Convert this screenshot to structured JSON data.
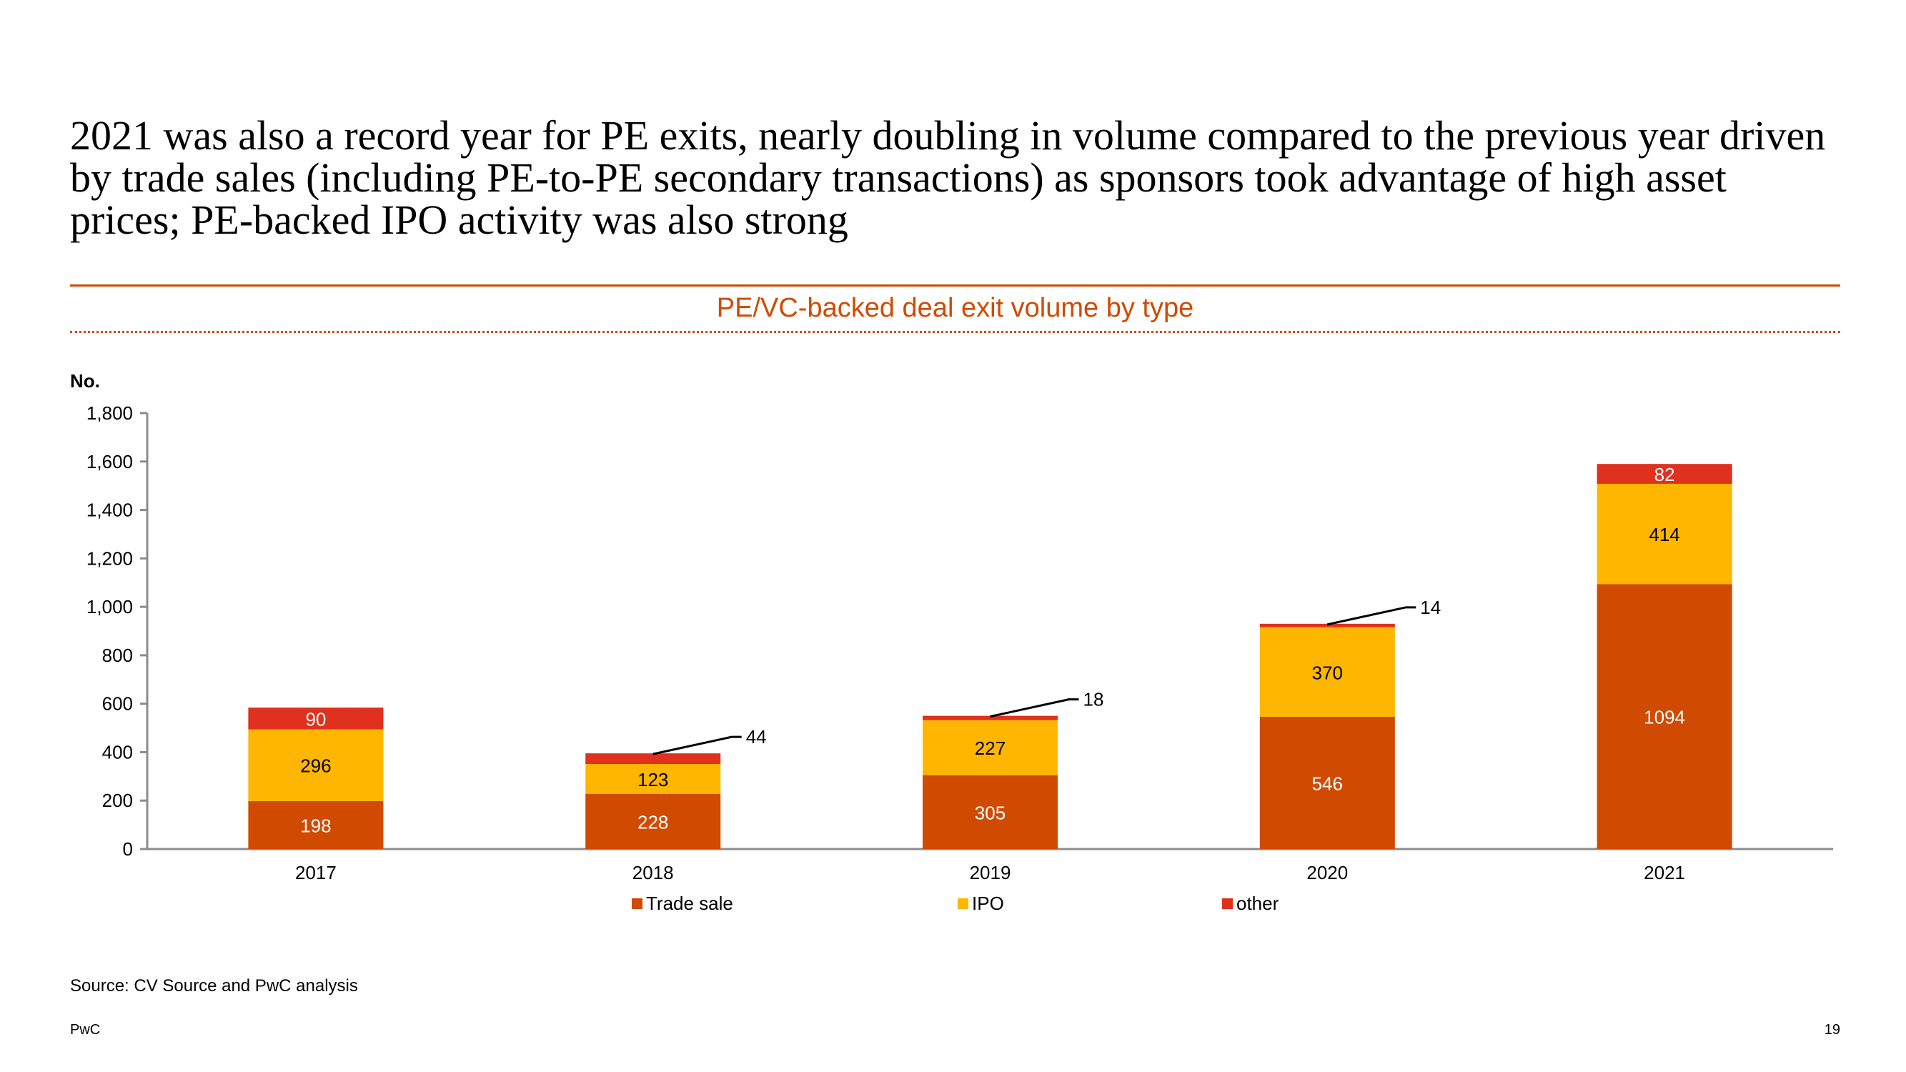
{
  "slide": {
    "headline": "2021 was also a record year for PE exits, nearly doubling in volume compared to the previous year driven by trade sales (including PE-to-PE secondary transactions) as sponsors took advantage of high asset prices; PE-backed IPO activity was also strong",
    "source": "Source: CV Source and PwC analysis",
    "footer_brand": "PwC",
    "page_number": "19"
  },
  "colors": {
    "accent": "#d04a02",
    "trade_sale": "#d04a02",
    "ipo": "#ffb600",
    "other": "#e0301e"
  },
  "chart_data": {
    "type": "bar",
    "stacked": true,
    "title": "PE/VC-backed deal exit volume by type",
    "ylabel": "No.",
    "xlabel": "",
    "ylim": [
      0,
      1800
    ],
    "yticks": [
      "0",
      "200",
      "400",
      "600",
      "800",
      "1,000",
      "1,200",
      "1,400",
      "1,600",
      "1,800"
    ],
    "ytick_values": [
      0,
      200,
      400,
      600,
      800,
      1000,
      1200,
      1400,
      1600,
      1800
    ],
    "categories": [
      "2017",
      "2018",
      "2019",
      "2020",
      "2021"
    ],
    "series": [
      {
        "name": "Trade sale",
        "color": "#d04a02",
        "values": [
          198,
          228,
          305,
          546,
          1094
        ],
        "labels": [
          "198",
          "228",
          "305",
          "546",
          "1094"
        ]
      },
      {
        "name": "IPO",
        "color": "#ffb600",
        "values": [
          296,
          123,
          227,
          370,
          414
        ],
        "labels": [
          "296",
          "123",
          "227",
          "370",
          "414"
        ]
      },
      {
        "name": "other",
        "color": "#e0301e",
        "values": [
          90,
          44,
          18,
          14,
          82
        ],
        "labels": [
          "90",
          "44",
          "18",
          "14",
          "82"
        ]
      }
    ],
    "legend": [
      "Trade sale",
      "IPO",
      "other"
    ],
    "legend_position": "bottom",
    "grid": false
  }
}
